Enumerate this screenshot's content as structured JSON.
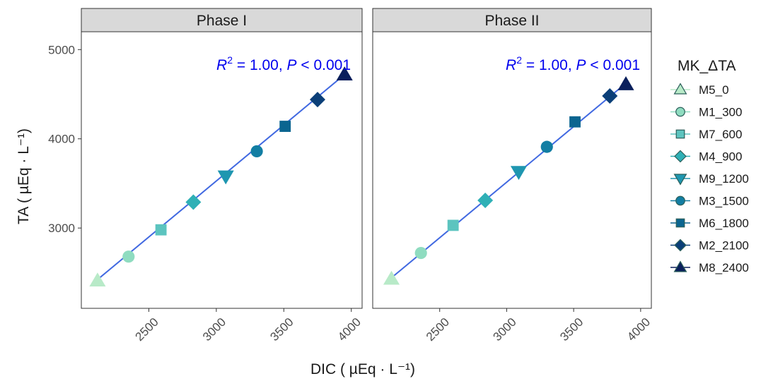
{
  "chart_data": {
    "type": "scatter",
    "xlabel": "DIC ( µEq · L⁻¹)",
    "ylabel": "TA ( µEq · L⁻¹)",
    "xlim": [
      2000,
      4080
    ],
    "ylim": [
      2100,
      5200
    ],
    "xticks": [
      2500,
      3000,
      3500,
      4000
    ],
    "yticks": [
      3000,
      4000,
      5000
    ],
    "grid": false,
    "legend": {
      "title": "MK_ΔTA",
      "placement": "right",
      "entries": [
        "M5_0",
        "M1_300",
        "M7_600",
        "M4_900",
        "M9_1200",
        "M3_1500",
        "M6_1800",
        "M2_2100",
        "M8_2400"
      ],
      "colors": [
        "#b8eac8",
        "#8fdcc0",
        "#5cc4bf",
        "#2fb0b6",
        "#1e96b0",
        "#127ea3",
        "#0b6590",
        "#0b3f78",
        "#0a1f5c"
      ],
      "shapes": [
        "triangle",
        "circle",
        "square",
        "diamond",
        "triangle-down",
        "circle",
        "square",
        "diamond",
        "triangle"
      ]
    },
    "fit_line_color": "#4169e1",
    "annotation_color": "#0000ee",
    "panels": [
      {
        "title": "Phase I",
        "annotation": {
          "r2": "1.00",
          "p": "0.001"
        },
        "fit_line": {
          "x": [
            2110,
            3950
          ],
          "y": [
            2410,
            4720
          ]
        },
        "points": [
          {
            "series": "M5_0",
            "x": 2120,
            "y": 2410
          },
          {
            "series": "M1_300",
            "x": 2350,
            "y": 2680
          },
          {
            "series": "M7_600",
            "x": 2590,
            "y": 2980
          },
          {
            "series": "M4_900",
            "x": 2830,
            "y": 3290
          },
          {
            "series": "M9_1200",
            "x": 3070,
            "y": 3580
          },
          {
            "series": "M3_1500",
            "x": 3300,
            "y": 3860
          },
          {
            "series": "M6_1800",
            "x": 3510,
            "y": 4140
          },
          {
            "series": "M2_2100",
            "x": 3750,
            "y": 4440
          },
          {
            "series": "M8_2400",
            "x": 3950,
            "y": 4720
          }
        ]
      },
      {
        "title": "Phase II",
        "annotation": {
          "r2": "1.00",
          "p": "0.001"
        },
        "fit_line": {
          "x": [
            2130,
            3880
          ],
          "y": [
            2430,
            4610
          ]
        },
        "points": [
          {
            "series": "M5_0",
            "x": 2140,
            "y": 2430
          },
          {
            "series": "M1_300",
            "x": 2360,
            "y": 2720
          },
          {
            "series": "M7_600",
            "x": 2600,
            "y": 3030
          },
          {
            "series": "M4_900",
            "x": 2840,
            "y": 3310
          },
          {
            "series": "M9_1200",
            "x": 3090,
            "y": 3630
          },
          {
            "series": "M3_1500",
            "x": 3300,
            "y": 3910
          },
          {
            "series": "M6_1800",
            "x": 3510,
            "y": 4190
          },
          {
            "series": "M2_2100",
            "x": 3770,
            "y": 4480
          },
          {
            "series": "M8_2400",
            "x": 3890,
            "y": 4610
          }
        ]
      }
    ]
  }
}
